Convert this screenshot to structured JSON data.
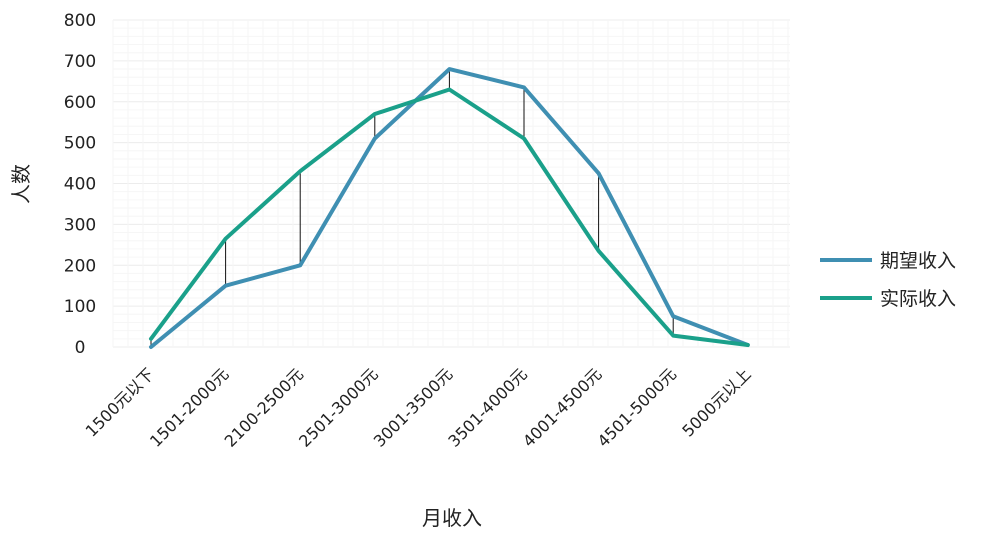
{
  "chart_data": {
    "type": "line",
    "title": "",
    "xlabel": "月收入",
    "ylabel": "人数",
    "ylim": [
      0,
      800
    ],
    "yticks": [
      0,
      100,
      200,
      300,
      400,
      500,
      600,
      700,
      800
    ],
    "categories": [
      "1500元以下",
      "1501-2000元",
      "2100-2500元",
      "2501-3000元",
      "3001-3500元",
      "3501-4000元",
      "4001-4500元",
      "4501-5000元",
      "5000元以上"
    ],
    "series": [
      {
        "name": "期望收入",
        "color": "#3f8fb2",
        "values": [
          0,
          150,
          200,
          510,
          680,
          635,
          425,
          75,
          5
        ]
      },
      {
        "name": "实际收入",
        "color": "#1aa08a",
        "values": [
          20,
          265,
          430,
          570,
          630,
          510,
          235,
          28,
          5
        ]
      }
    ],
    "drop_lines": true,
    "grid": true,
    "legend_position": "right"
  }
}
